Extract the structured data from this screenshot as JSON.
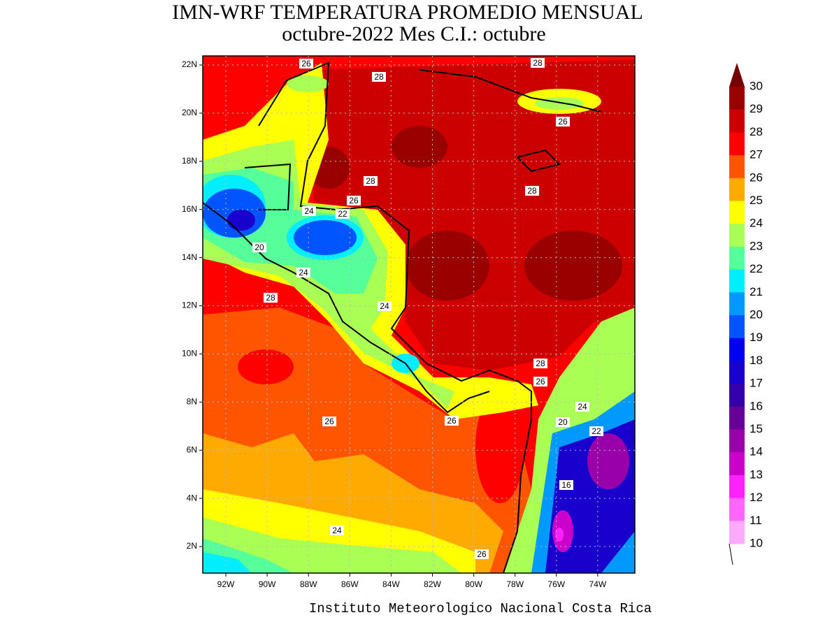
{
  "title": {
    "line1": "IMN-WRF  TEMPERATURA PROMEDIO MENSUAL",
    "line2": "octubre-2022 Mes C.I.: octubre"
  },
  "map": {
    "lat_ticks": [
      "22N",
      "20N",
      "18N",
      "16N",
      "14N",
      "12N",
      "10N",
      "8N",
      "6N",
      "4N",
      "2N"
    ],
    "lon_ticks": [
      "92W",
      "90W",
      "88W",
      "86W",
      "84W",
      "82W",
      "80W",
      "78W",
      "76W",
      "74W"
    ],
    "contour_labels": [
      "26",
      "28",
      "28",
      "26",
      "28",
      "28",
      "26",
      "24",
      "22",
      "20",
      "24",
      "28",
      "24",
      "28",
      "26",
      "24",
      "20",
      "22",
      "26",
      "26",
      "16",
      "24",
      "26"
    ]
  },
  "colorbar": {
    "levels": [
      30,
      29,
      28,
      27,
      26,
      25,
      24,
      23,
      22,
      21,
      20,
      19,
      18,
      17,
      16,
      15,
      14,
      13,
      12,
      11,
      10
    ],
    "colors": [
      "#990000",
      "#cc0000",
      "#ff0000",
      "#ff5500",
      "#ffaa00",
      "#ffff00",
      "#aaff55",
      "#55ff99",
      "#00eeff",
      "#0099ff",
      "#0055ff",
      "#0000ee",
      "#1a00cc",
      "#3300aa",
      "#660099",
      "#9900aa",
      "#cc00cc",
      "#ff22ff",
      "#ff66ff",
      "#ffaaff"
    ],
    "arrow_color": "#770000"
  },
  "footer": "Instituto Meteorologico Nacional Costa Rica"
}
